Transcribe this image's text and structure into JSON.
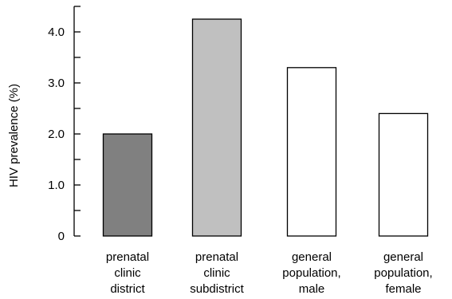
{
  "chart_data": {
    "type": "bar",
    "title": "",
    "xlabel": "",
    "ylabel": "HIV prevalence (%)",
    "ylim": [
      0,
      4.5
    ],
    "yticks": [
      0,
      0.5,
      1.0,
      1.5,
      2.0,
      2.5,
      3.0,
      3.5,
      4.0,
      4.5
    ],
    "ytick_labels": [
      {
        "value": 0,
        "label": "0"
      },
      {
        "value": 1.0,
        "label": "1.0"
      },
      {
        "value": 2.0,
        "label": "2.0"
      },
      {
        "value": 3.0,
        "label": "3.0"
      },
      {
        "value": 4.0,
        "label": "4.0"
      }
    ],
    "grid": false,
    "categories": [
      [
        "prenatal",
        "clinic",
        "district"
      ],
      [
        "prenatal",
        "clinic",
        "subdistrict"
      ],
      [
        "general",
        "population,",
        "male"
      ],
      [
        "general",
        "population,",
        "female"
      ]
    ],
    "values": [
      2.0,
      4.25,
      3.3,
      2.4
    ],
    "colors": [
      "#808080",
      "#c0c0c0",
      "#ffffff",
      "#ffffff"
    ]
  }
}
